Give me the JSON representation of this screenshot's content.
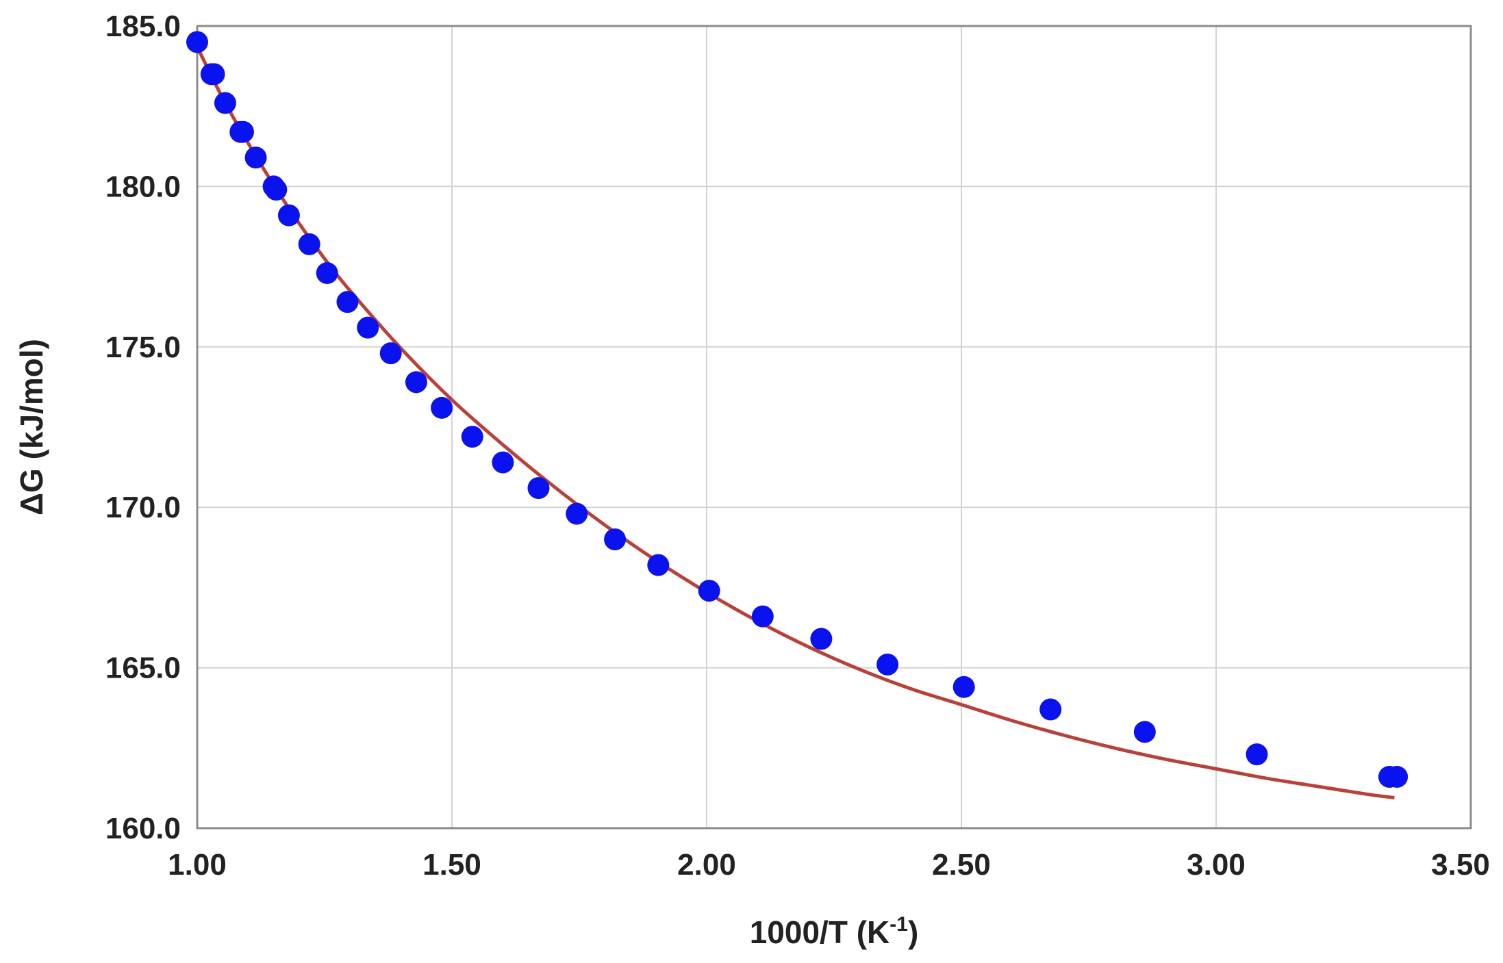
{
  "chart_data": {
    "type": "scatter",
    "title": "",
    "xlabel": "1000/T (K",
    "xlabel_superscript": "-1",
    "xlabel_suffix": ")",
    "ylabel": "ΔG (kJ/mol)",
    "xlim": [
      1.0,
      3.5
    ],
    "ylim": [
      160.0,
      185.0
    ],
    "x_ticks": [
      "1.00",
      "1.50",
      "2.00",
      "2.50",
      "3.00",
      "3.50"
    ],
    "y_ticks": [
      "160.0",
      "165.0",
      "170.0",
      "175.0",
      "180.0",
      "185.0"
    ],
    "grid": true,
    "legend": "none",
    "colors": {
      "points": "#0a12f0",
      "fit_line": "#b8423a",
      "grid": "#d4d4d4",
      "frame": "#8c8c8c"
    },
    "series": [
      {
        "kind": "points",
        "x": [
          1.0,
          1.028,
          1.033,
          1.055,
          1.085,
          1.09,
          1.115,
          1.15,
          1.155,
          1.18,
          1.22,
          1.255,
          1.295,
          1.335,
          1.38,
          1.43,
          1.48,
          1.54,
          1.6,
          1.67,
          1.745,
          1.82,
          1.905,
          2.005,
          2.11,
          2.225,
          2.355,
          2.505,
          2.675,
          2.86,
          3.08,
          3.34,
          3.355
        ],
        "y": [
          184.5,
          183.5,
          183.5,
          182.6,
          181.7,
          181.7,
          180.9,
          180.0,
          179.9,
          179.1,
          178.2,
          177.3,
          176.4,
          175.6,
          174.8,
          173.9,
          173.1,
          172.2,
          171.4,
          170.6,
          169.8,
          169.0,
          168.2,
          167.4,
          166.6,
          165.9,
          165.1,
          164.4,
          163.7,
          163.0,
          162.3,
          161.6,
          161.6
        ]
      },
      {
        "kind": "fit_line",
        "x": [
          1.0,
          1.05,
          1.1,
          1.15,
          1.2,
          1.25,
          1.3,
          1.4,
          1.5,
          1.6,
          1.7,
          1.8,
          1.9,
          2.0,
          2.1,
          2.2,
          2.3,
          2.4,
          2.5,
          2.6,
          2.7,
          2.8,
          2.9,
          3.0,
          3.1,
          3.2,
          3.3,
          3.35
        ],
        "y": [
          184.35,
          182.75,
          181.35,
          180.05,
          178.85,
          177.75,
          176.75,
          174.95,
          173.35,
          171.95,
          170.65,
          169.45,
          168.35,
          167.35,
          166.45,
          165.65,
          164.95,
          164.35,
          163.85,
          163.35,
          162.9,
          162.5,
          162.15,
          161.85,
          161.55,
          161.3,
          161.05,
          160.95
        ]
      }
    ]
  }
}
